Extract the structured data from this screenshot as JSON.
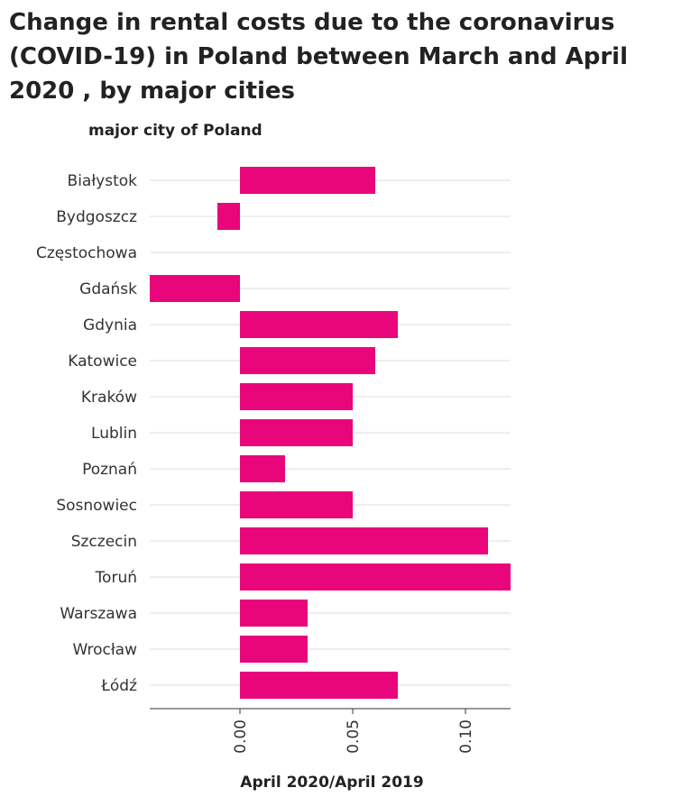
{
  "chart_data": {
    "type": "bar",
    "orientation": "horizontal",
    "title": "Change in rental costs due to the coronavirus (COVID-19) in Poland between March and April 2020 , by major cities",
    "ylabel": "major city of Poland",
    "xlabel": "April 2020/April 2019",
    "categories": [
      "Białystok",
      "Bydgoszcz",
      "Częstochowa",
      "Gdańsk",
      "Gdynia",
      "Katowice",
      "Kraków",
      "Lublin",
      "Poznań",
      "Sosnowiec",
      "Szczecin",
      "Toruń",
      "Warszawa",
      "Wrocław",
      "Łódź"
    ],
    "values": [
      0.06,
      -0.01,
      0,
      -0.04,
      0.07,
      0.06,
      0.05,
      0.05,
      0.02,
      0.05,
      0.11,
      0.12,
      0.03,
      0.03,
      0.07
    ],
    "xlim": [
      -0.04,
      0.12
    ],
    "xticks": [
      0.0,
      0.05,
      0.1
    ],
    "xtick_labels": [
      "0.00",
      "0.05",
      "0.10"
    ],
    "grid": "horizontal",
    "bar_color": "#e8067a",
    "grid_color": "#dddddd"
  }
}
